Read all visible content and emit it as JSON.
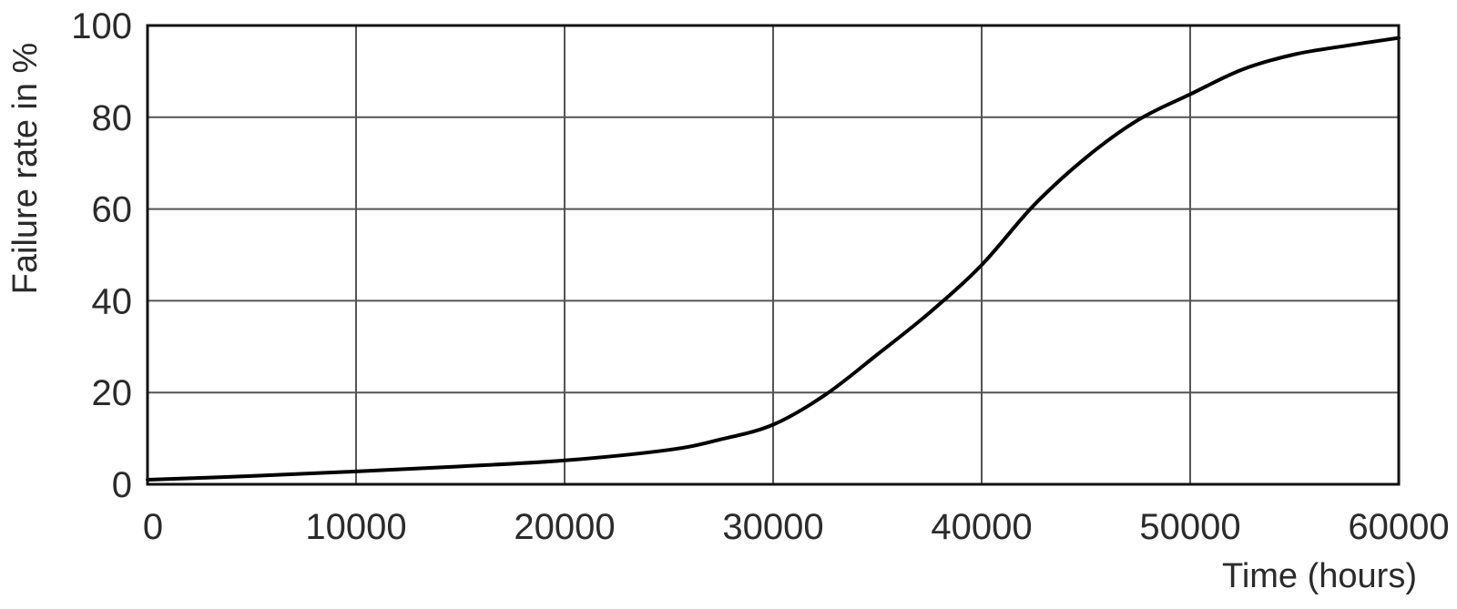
{
  "chart_data": {
    "type": "line",
    "title": "",
    "xlabel": "Time (hours)",
    "ylabel": "Failure rate in %",
    "xlim": [
      0,
      60000
    ],
    "ylim": [
      0,
      100
    ],
    "grid": true,
    "x_ticks": [
      "0",
      "10000",
      "20000",
      "30000",
      "40000",
      "50000",
      "60000"
    ],
    "y_ticks": [
      "0",
      "20",
      "40",
      "60",
      "80",
      "100"
    ],
    "series": [
      {
        "color": "#000000",
        "x": [
          0,
          5000,
          10000,
          15000,
          20000,
          25000,
          27500,
          30000,
          32500,
          35000,
          37500,
          40000,
          42500,
          45000,
          47500,
          50000,
          52500,
          55000,
          57500,
          60000
        ],
        "y": [
          1.0,
          1.8,
          2.8,
          3.9,
          5.2,
          7.5,
          9.8,
          13.0,
          19.5,
          28.3,
          37.4,
          47.8,
          60.8,
          71.2,
          79.4,
          85.0,
          90.4,
          93.7,
          95.6,
          97.3
        ]
      }
    ]
  }
}
